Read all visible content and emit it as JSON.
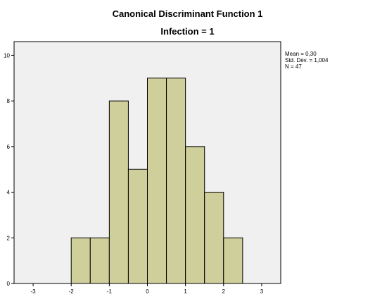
{
  "chart_data": {
    "type": "bar",
    "title": "Canonical Discriminant Function 1",
    "subtitle": "Infection = 1",
    "xlabel": "",
    "ylabel": "",
    "bin_width": 0.5,
    "bins": [
      {
        "start": -2.0,
        "end": -1.5,
        "count": 2
      },
      {
        "start": -1.5,
        "end": -1.0,
        "count": 2
      },
      {
        "start": -1.0,
        "end": -0.5,
        "count": 8
      },
      {
        "start": -0.5,
        "end": 0.0,
        "count": 5
      },
      {
        "start": 0.0,
        "end": 0.5,
        "count": 9
      },
      {
        "start": 0.5,
        "end": 1.0,
        "count": 9
      },
      {
        "start": 1.0,
        "end": 1.5,
        "count": 6
      },
      {
        "start": 1.5,
        "end": 2.0,
        "count": 4
      },
      {
        "start": 2.0,
        "end": 2.5,
        "count": 2
      }
    ],
    "xlim": [
      -3.5,
      3.5
    ],
    "ylim": [
      0,
      10.6
    ],
    "xticks": [
      "-3",
      "-2",
      "-1",
      "0",
      "1",
      "2",
      "3"
    ],
    "xtick_values": [
      -3,
      -2,
      -1,
      0,
      1,
      2,
      3
    ],
    "yticks": [
      "0",
      "2",
      "4",
      "6",
      "8",
      "10"
    ],
    "ytick_values": [
      0,
      2,
      4,
      6,
      8,
      10
    ],
    "grid": false,
    "colors": {
      "bar_fill": "#cfcf9b",
      "bar_stroke": "#000000",
      "plot_background": "#f0f0f0"
    },
    "stats": {
      "mean": "Mean = 0,30",
      "std": "Std. Dev. = 1,004",
      "n": "N = 47"
    }
  }
}
